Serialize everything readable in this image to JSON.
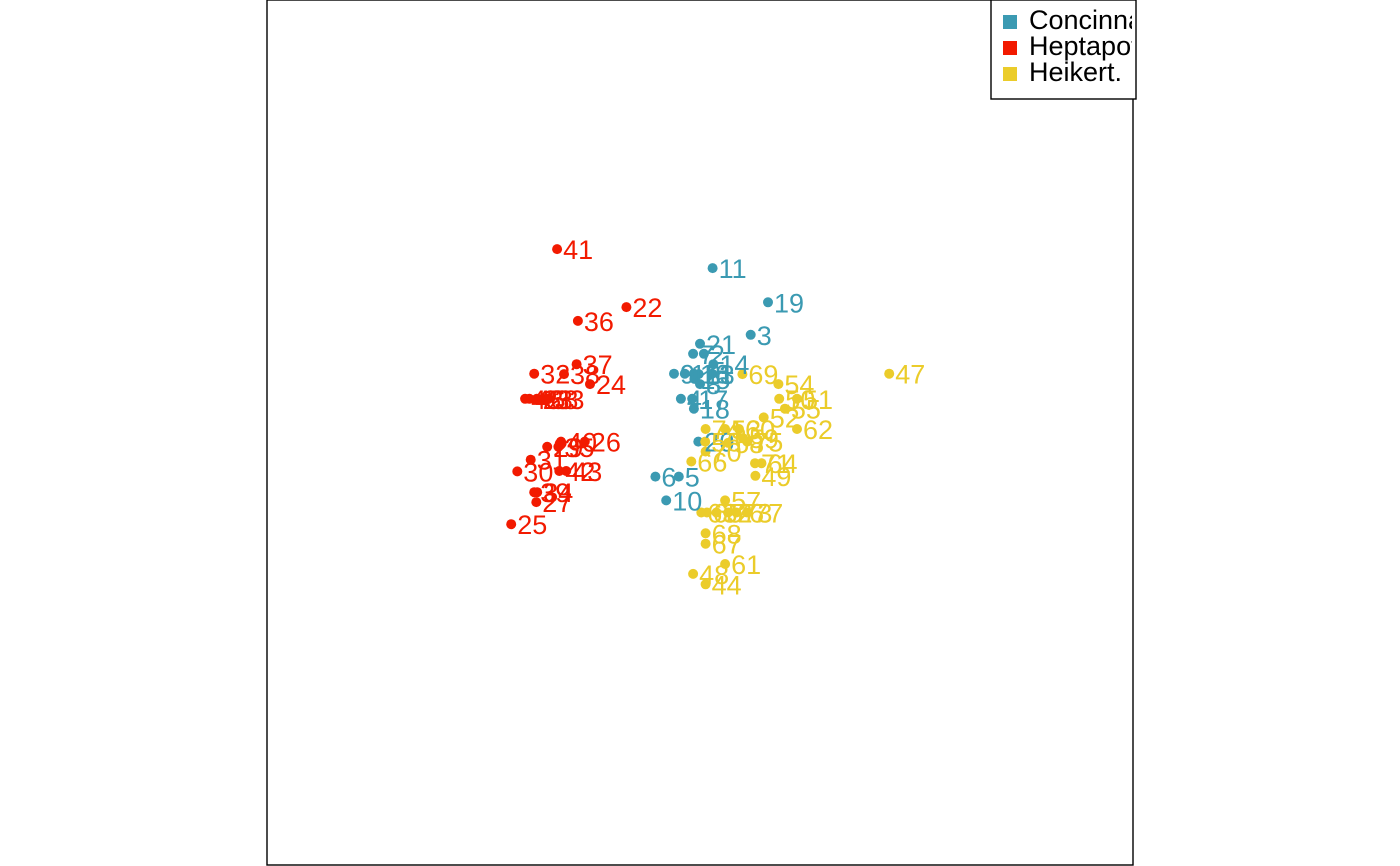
{
  "chart_data": {
    "type": "scatter",
    "title": "",
    "xlabel": "",
    "ylabel": "",
    "xlim": [
      -1,
      1
    ],
    "ylim": [
      -1,
      1
    ],
    "grid": false,
    "axes_visible": false,
    "legend_position": "top-right",
    "series": [
      {
        "name": "Concinna",
        "color": "#3B9AB2",
        "points": [
          {
            "label": "1",
            "x": 0.028,
            "y": 0.136
          },
          {
            "label": "2",
            "x": 0.009,
            "y": 0.182
          },
          {
            "label": "3",
            "x": 0.117,
            "y": 0.226
          },
          {
            "label": "4",
            "x": -0.044,
            "y": 0.078
          },
          {
            "label": "5",
            "x": -0.049,
            "y": -0.102
          },
          {
            "label": "6",
            "x": -0.103,
            "y": -0.102
          },
          {
            "label": "7",
            "x": -0.016,
            "y": 0.182
          },
          {
            "label": "8",
            "x": 0.0,
            "y": 0.112
          },
          {
            "label": "9",
            "x": -0.06,
            "y": 0.136
          },
          {
            "label": "10",
            "x": -0.078,
            "y": -0.157
          },
          {
            "label": "11",
            "x": 0.029,
            "y": 0.38
          },
          {
            "label": "12",
            "x": -0.035,
            "y": 0.136
          },
          {
            "label": "13",
            "x": -0.003,
            "y": 0.135
          },
          {
            "label": "14",
            "x": 0.031,
            "y": 0.158
          },
          {
            "label": "15",
            "x": -0.013,
            "y": 0.124
          },
          {
            "label": "16",
            "x": -0.014,
            "y": 0.136
          },
          {
            "label": "17",
            "x": -0.018,
            "y": 0.078
          },
          {
            "label": "18",
            "x": -0.014,
            "y": 0.055
          },
          {
            "label": "19",
            "x": 0.157,
            "y": 0.301
          },
          {
            "label": "20",
            "x": -0.004,
            "y": -0.021
          },
          {
            "label": "21",
            "x": 0.0,
            "y": 0.205
          }
        ]
      },
      {
        "name": "Heptapot.",
        "color": "#F21A00",
        "points": [
          {
            "label": "22",
            "x": -0.17,
            "y": 0.29
          },
          {
            "label": "23",
            "x": -0.377,
            "y": 0.078
          },
          {
            "label": "24",
            "x": -0.254,
            "y": 0.112
          },
          {
            "label": "25",
            "x": -0.436,
            "y": -0.212
          },
          {
            "label": "26",
            "x": -0.266,
            "y": -0.021
          },
          {
            "label": "27",
            "x": -0.378,
            "y": -0.161
          },
          {
            "label": "28",
            "x": -0.364,
            "y": 0.078
          },
          {
            "label": "29",
            "x": -0.353,
            "y": -0.033
          },
          {
            "label": "30",
            "x": -0.422,
            "y": -0.09
          },
          {
            "label": "31",
            "x": -0.391,
            "y": -0.063
          },
          {
            "label": "32",
            "x": -0.383,
            "y": 0.136
          },
          {
            "label": "33",
            "x": -0.35,
            "y": 0.078
          },
          {
            "label": "34",
            "x": -0.376,
            "y": -0.138
          },
          {
            "label": "35",
            "x": -0.327,
            "y": -0.033
          },
          {
            "label": "36",
            "x": -0.282,
            "y": 0.258
          },
          {
            "label": "37",
            "x": -0.285,
            "y": 0.158
          },
          {
            "label": "38",
            "x": -0.314,
            "y": 0.135
          },
          {
            "label": "39",
            "x": -0.383,
            "y": -0.138
          },
          {
            "label": "40",
            "x": -0.321,
            "y": -0.021
          },
          {
            "label": "41",
            "x": -0.33,
            "y": 0.424
          },
          {
            "label": "42",
            "x": -0.325,
            "y": -0.089
          },
          {
            "label": "43",
            "x": -0.309,
            "y": -0.089
          },
          {
            "label": "45",
            "x": -0.404,
            "y": 0.078
          },
          {
            "label": "46",
            "x": -0.394,
            "y": 0.078
          }
        ]
      },
      {
        "name": "Heikert.",
        "color": "#EBCC2A",
        "points": [
          {
            "label": "44",
            "x": 0.013,
            "y": -0.351
          },
          {
            "label": "47",
            "x": 0.437,
            "y": 0.136
          },
          {
            "label": "48",
            "x": -0.016,
            "y": -0.327
          },
          {
            "label": "49",
            "x": 0.128,
            "y": -0.1
          },
          {
            "label": "50",
            "x": 0.183,
            "y": 0.078
          },
          {
            "label": "51",
            "x": 0.224,
            "y": 0.078
          },
          {
            "label": "52",
            "x": 0.147,
            "y": 0.035
          },
          {
            "label": "53",
            "x": 0.058,
            "y": 0.008
          },
          {
            "label": "54",
            "x": 0.181,
            "y": 0.112
          },
          {
            "label": "55",
            "x": 0.196,
            "y": 0.055
          },
          {
            "label": "56",
            "x": 0.012,
            "y": -0.021
          },
          {
            "label": "57",
            "x": 0.058,
            "y": -0.157
          },
          {
            "label": "58",
            "x": 0.065,
            "y": -0.024
          },
          {
            "label": "59",
            "x": 0.099,
            "y": -0.013
          },
          {
            "label": "60",
            "x": 0.09,
            "y": 0.008
          },
          {
            "label": "61",
            "x": 0.058,
            "y": -0.304
          },
          {
            "label": "62",
            "x": 0.224,
            "y": 0.008
          },
          {
            "label": "63",
            "x": 0.003,
            "y": -0.185
          },
          {
            "label": "64",
            "x": 0.142,
            "y": -0.071
          },
          {
            "label": "65",
            "x": 0.016,
            "y": -0.185
          },
          {
            "label": "66",
            "x": -0.02,
            "y": -0.067
          },
          {
            "label": "67",
            "x": 0.013,
            "y": -0.257
          },
          {
            "label": "68",
            "x": 0.013,
            "y": -0.233
          },
          {
            "label": "69",
            "x": 0.098,
            "y": 0.135
          },
          {
            "label": "70",
            "x": 0.013,
            "y": -0.044
          },
          {
            "label": "71",
            "x": 0.127,
            "y": -0.071
          },
          {
            "label": "72",
            "x": 0.038,
            "y": -0.185
          },
          {
            "label": "73",
            "x": 0.084,
            "y": -0.185
          },
          {
            "label": "74",
            "x": 0.013,
            "y": 0.008
          },
          {
            "label": "75",
            "x": 0.109,
            "y": -0.021
          },
          {
            "label": "76",
            "x": 0.065,
            "y": -0.185
          },
          {
            "label": "77",
            "x": 0.109,
            "y": -0.185
          }
        ]
      }
    ]
  }
}
